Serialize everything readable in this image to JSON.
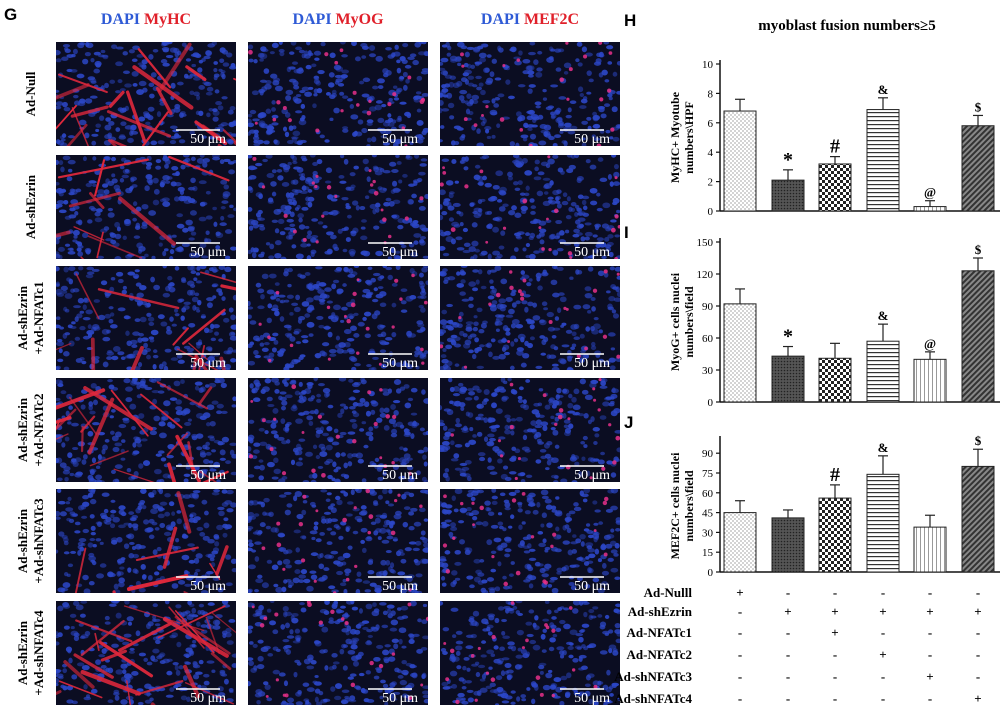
{
  "panels": {
    "G": "G",
    "H": "H",
    "I": "I",
    "J": "J"
  },
  "microscopy": {
    "columns": [
      {
        "dapi": "DAPI",
        "marker": "MyHC",
        "stain": "myhc"
      },
      {
        "dapi": "DAPI",
        "marker": "MyOG",
        "stain": "nuclear"
      },
      {
        "dapi": "DAPI",
        "marker": "MEF2C",
        "stain": "nuclear"
      }
    ],
    "rows": [
      {
        "lines": [
          "Ad-Null"
        ],
        "myhc_density": 0.9
      },
      {
        "lines": [
          "Ad-shEzrin"
        ],
        "myhc_density": 0.35
      },
      {
        "lines": [
          "Ad-shEzrin",
          "+Ad-NFATc1"
        ],
        "myhc_density": 0.55
      },
      {
        "lines": [
          "Ad-shEzrin",
          "+Ad-NFATc2"
        ],
        "myhc_density": 0.85
      },
      {
        "lines": [
          "Ad-shEzrin",
          "+Ad-shNFATc3"
        ],
        "myhc_density": 0.25
      },
      {
        "lines": [
          "Ad-shEzrin",
          "+Ad-shNFATc4"
        ],
        "myhc_density": 1.0
      }
    ],
    "scale_bar": "50 μm",
    "colors": {
      "dapi_text": "#2f5bd6",
      "marker_text": "#e0202a",
      "background": "#0b0d22",
      "nuclei": "#2c47c8",
      "myotube": "#e0283c"
    }
  },
  "chart_data": [
    {
      "type": "bar",
      "title": "myoblast fusion numbers≥5",
      "ylabel": [
        "MyHC+ Myotube",
        "numbers\\HPF"
      ],
      "ylim": [
        0,
        10
      ],
      "yticks": [
        0,
        2,
        4,
        6,
        8,
        10
      ],
      "values": [
        6.8,
        2.1,
        3.2,
        6.9,
        0.3,
        5.8
      ],
      "errors": [
        0.8,
        0.7,
        0.5,
        0.8,
        0.4,
        0.7
      ],
      "marks": [
        "",
        "*",
        "#",
        "&",
        "@",
        "$"
      ]
    },
    {
      "type": "bar",
      "title": "",
      "ylabel": [
        "MyoG+ cells nuclei",
        "numbers\\field"
      ],
      "ylim": [
        0,
        150
      ],
      "yticks": [
        0,
        30,
        60,
        90,
        120,
        150
      ],
      "values": [
        92,
        43,
        41,
        57,
        40,
        123
      ],
      "errors": [
        14,
        9,
        14,
        16,
        7,
        12
      ],
      "marks": [
        "",
        "*",
        "",
        "&",
        "@",
        "$"
      ]
    },
    {
      "type": "bar",
      "title": "",
      "ylabel": [
        "MEF2C+ cells nuclei",
        "numbers\\field"
      ],
      "ylim": [
        0,
        100
      ],
      "yticks": [
        0,
        15,
        30,
        45,
        60,
        75,
        90
      ],
      "values": [
        45,
        41,
        56,
        74,
        34,
        80
      ],
      "errors": [
        9,
        6,
        10,
        14,
        9,
        13
      ],
      "marks": [
        "",
        "",
        "#",
        "&",
        "",
        "$"
      ]
    }
  ],
  "conditions_table": {
    "rows": [
      {
        "label": "Ad-Nulll",
        "symbols": [
          "+",
          "-",
          "-",
          "-",
          "-",
          "-"
        ]
      },
      {
        "label": "Ad-shEzrin",
        "symbols": [
          "-",
          "+",
          "+",
          "+",
          "+",
          "+"
        ]
      },
      {
        "label": "Ad-NFATc1",
        "symbols": [
          "-",
          "-",
          "+",
          "-",
          "-",
          "-"
        ]
      },
      {
        "label": "Ad-NFATc2",
        "symbols": [
          "-",
          "-",
          "-",
          "+",
          "-",
          "-"
        ]
      },
      {
        "label": "Ad-shNFATc3",
        "symbols": [
          "-",
          "-",
          "-",
          "-",
          "+",
          "-"
        ]
      },
      {
        "label": "Ad-shNFATc4",
        "symbols": [
          "-",
          "-",
          "-",
          "-",
          "-",
          "+"
        ]
      }
    ]
  },
  "bar_patterns": [
    "dots",
    "dark-dots",
    "checker",
    "hlines",
    "vlines-light",
    "diag-dark"
  ]
}
